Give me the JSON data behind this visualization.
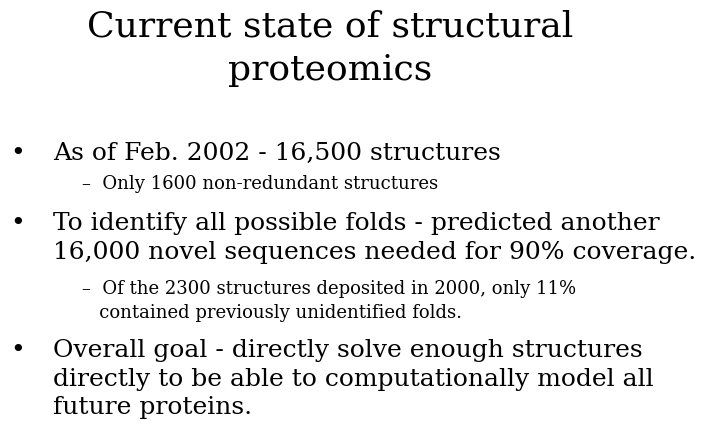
{
  "title": "Current state of structural\nproteomics",
  "background_color": "#ffffff",
  "text_color": "#000000",
  "title_fontsize": 26,
  "body_font": "DejaVu Serif",
  "bullet1_text": "As of Feb. 2002 - 16,500 structures",
  "bullet1_fontsize": 18,
  "sub1_text": "–  Only 1600 non-redundant structures",
  "sub1_fontsize": 13,
  "bullet2_text": "To identify all possible folds - predicted another\n16,000 novel sequences needed for 90% coverage.",
  "bullet2_fontsize": 18,
  "sub2_text": "–  Of the 2300 structures deposited in 2000, only 11%\n   contained previously unidentified folds.",
  "sub2_fontsize": 13,
  "bullet3_text": "Overall goal - directly solve enough structures\ndirectly to be able to computationally model all\nfuture proteins.",
  "bullet3_fontsize": 18,
  "bullet_symbol": "•"
}
